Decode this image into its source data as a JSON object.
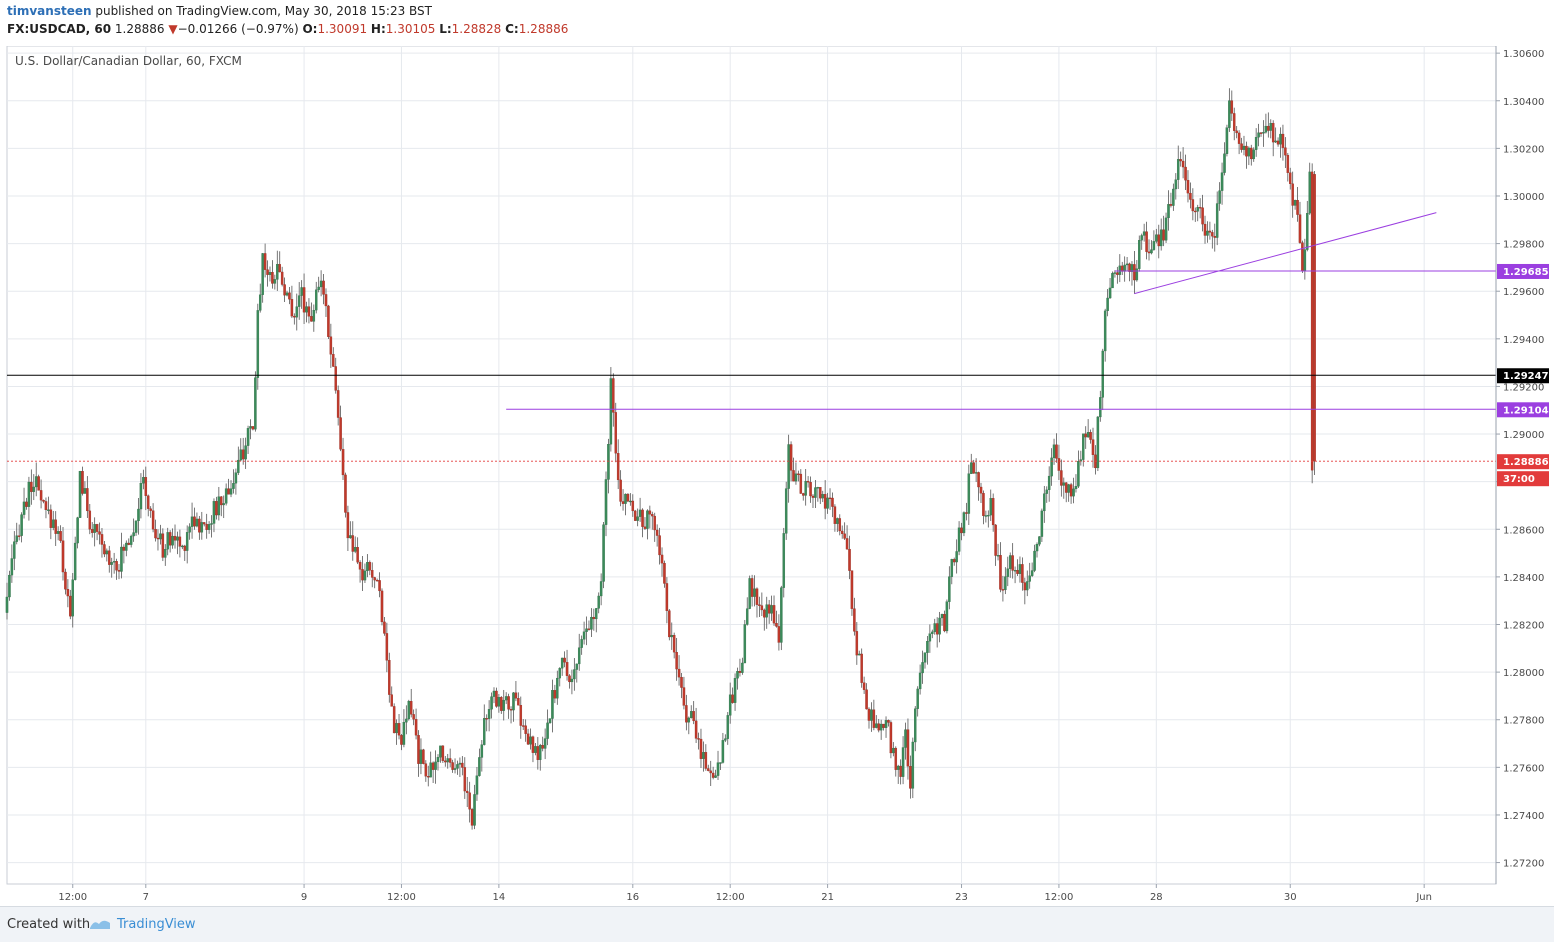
{
  "header": {
    "author": "timvansteen",
    "published": "published on TradingView.com, May 30, 2018 15:23 BST",
    "symbol": "FX:USDCAD, 60",
    "last": "1.28886",
    "change_arrow": "▼",
    "change": "−0.01266 (−0.97%)",
    "open_label": "O:",
    "open": "1.30091",
    "high_label": "H:",
    "high": "1.30105",
    "low_label": "L:",
    "low": "1.28828",
    "close_label": "C:",
    "close": "1.28886"
  },
  "chart_title": "U.S. Dollar/Canadian Dollar, 60, FXCM",
  "footer": {
    "created_with": "Created with",
    "brand": "TradingView"
  },
  "colors": {
    "up": "#3b8a5a",
    "down": "#c0392b",
    "wick": "#555555",
    "grid": "#e6e9ee",
    "line_purple": "#9b3fe0",
    "line_black": "#000000",
    "last_price": "#e23b3b",
    "axis_text": "#4a4a4a"
  },
  "chart_data": {
    "type": "candlestick",
    "title": "U.S. Dollar/Canadian Dollar, 60, FXCM",
    "ylim": [
      1.2711,
      1.3063
    ],
    "y_ticks": [
      "1.27200",
      "1.27400",
      "1.27600",
      "1.27800",
      "1.28000",
      "1.28200",
      "1.28400",
      "1.28600",
      "1.28800",
      "1.29000",
      "1.29200",
      "1.29400",
      "1.29600",
      "1.29800",
      "1.30000",
      "1.30200",
      "1.30400",
      "1.30600"
    ],
    "x_ticks": [
      {
        "label": "12:00",
        "i": 27
      },
      {
        "label": "7",
        "i": 57
      },
      {
        "label": "9",
        "i": 122
      },
      {
        "label": "12:00",
        "i": 162
      },
      {
        "label": "14",
        "i": 202
      },
      {
        "label": "16",
        "i": 257
      },
      {
        "label": "12:00",
        "i": 297
      },
      {
        "label": "21",
        "i": 337
      },
      {
        "label": "23",
        "i": 392
      },
      {
        "label": "12:00",
        "i": 432
      },
      {
        "label": "28",
        "i": 472
      },
      {
        "label": "30",
        "i": 527
      },
      {
        "label": "Jun",
        "i": 582
      }
    ],
    "price_labels": [
      {
        "value": "1.29685",
        "kind": "purple"
      },
      {
        "value": "1.29247",
        "kind": "black"
      },
      {
        "value": "1.29104",
        "kind": "purple"
      },
      {
        "value": "1.28886",
        "kind": "last"
      },
      {
        "value": "37:00",
        "kind": "timer"
      }
    ],
    "lines": [
      {
        "kind": "horizontal",
        "price": 1.29247,
        "color": "black",
        "from_i": 0
      },
      {
        "kind": "horizontal",
        "price": 1.29104,
        "color": "purple",
        "from_i": 205
      },
      {
        "kind": "horizontal",
        "price": 1.29685,
        "color": "purple",
        "from_i": 455
      },
      {
        "kind": "trend",
        "from": [
          463,
          1.2959
        ],
        "to": [
          587,
          1.2993
        ],
        "color": "purple"
      },
      {
        "kind": "last_price",
        "price": 1.28886
      }
    ],
    "anchors": [
      [
        0,
        1.2825
      ],
      [
        3,
        1.2845
      ],
      [
        7,
        1.2867
      ],
      [
        12,
        1.2881
      ],
      [
        16,
        1.2868
      ],
      [
        22,
        1.286
      ],
      [
        27,
        1.2822
      ],
      [
        31,
        1.2883
      ],
      [
        35,
        1.2863
      ],
      [
        41,
        1.285
      ],
      [
        47,
        1.2846
      ],
      [
        53,
        1.2862
      ],
      [
        57,
        1.288
      ],
      [
        61,
        1.286
      ],
      [
        65,
        1.2852
      ],
      [
        69,
        1.2857
      ],
      [
        73,
        1.2852
      ],
      [
        77,
        1.2866
      ],
      [
        81,
        1.286
      ],
      [
        85,
        1.2866
      ],
      [
        90,
        1.2873
      ],
      [
        95,
        1.2883
      ],
      [
        99,
        1.2897
      ],
      [
        102,
        1.29
      ],
      [
        104,
        1.295
      ],
      [
        106,
        1.2975
      ],
      [
        109,
        1.2965
      ],
      [
        112,
        1.297
      ],
      [
        115,
        1.2962
      ],
      [
        118,
        1.295
      ],
      [
        121,
        1.296
      ],
      [
        124,
        1.2953
      ],
      [
        126,
        1.295
      ],
      [
        129,
        1.296
      ],
      [
        131,
        1.2962
      ],
      [
        133,
        1.2945
      ],
      [
        136,
        1.292
      ],
      [
        139,
        1.288
      ],
      [
        141,
        1.2858
      ],
      [
        144,
        1.2848
      ],
      [
        147,
        1.284
      ],
      [
        150,
        1.2844
      ],
      [
        152,
        1.2838
      ],
      [
        154,
        1.2835
      ],
      [
        156,
        1.2815
      ],
      [
        158,
        1.2795
      ],
      [
        160,
        1.2778
      ],
      [
        163,
        1.277
      ],
      [
        166,
        1.2785
      ],
      [
        168,
        1.278
      ],
      [
        170,
        1.2765
      ],
      [
        173,
        1.276
      ],
      [
        176,
        1.2757
      ],
      [
        179,
        1.2768
      ],
      [
        182,
        1.2763
      ],
      [
        185,
        1.2763
      ],
      [
        188,
        1.2759
      ],
      [
        190,
        1.2748
      ],
      [
        192,
        1.2736
      ],
      [
        194,
        1.276
      ],
      [
        197,
        1.278
      ],
      [
        201,
        1.2788
      ],
      [
        206,
        1.2787
      ],
      [
        210,
        1.2787
      ],
      [
        214,
        1.2773
      ],
      [
        218,
        1.2765
      ],
      [
        222,
        1.2769
      ],
      [
        225,
        1.2789
      ],
      [
        229,
        1.2804
      ],
      [
        232,
        1.2797
      ],
      [
        236,
        1.2807
      ],
      [
        239,
        1.2817
      ],
      [
        242,
        1.2822
      ],
      [
        245,
        1.2836
      ],
      [
        247,
        1.288
      ],
      [
        249,
        1.292
      ],
      [
        251,
        1.289
      ],
      [
        253,
        1.287
      ],
      [
        256,
        1.2875
      ],
      [
        259,
        1.2867
      ],
      [
        262,
        1.2862
      ],
      [
        265,
        1.2865
      ],
      [
        268,
        1.286
      ],
      [
        270,
        1.2845
      ],
      [
        273,
        1.2818
      ],
      [
        276,
        1.28
      ],
      [
        279,
        1.2785
      ],
      [
        282,
        1.278
      ],
      [
        285,
        1.277
      ],
      [
        288,
        1.2762
      ],
      [
        291,
        1.2756
      ],
      [
        294,
        1.2765
      ],
      [
        297,
        1.2782
      ],
      [
        300,
        1.2795
      ],
      [
        303,
        1.2808
      ],
      [
        306,
        1.2835
      ],
      [
        309,
        1.283
      ],
      [
        312,
        1.2822
      ],
      [
        315,
        1.283
      ],
      [
        318,
        1.2812
      ],
      [
        320,
        1.2858
      ],
      [
        322,
        1.2893
      ],
      [
        325,
        1.288
      ],
      [
        328,
        1.2878
      ],
      [
        331,
        1.2875
      ],
      [
        334,
        1.2875
      ],
      [
        337,
        1.287
      ],
      [
        340,
        1.2868
      ],
      [
        343,
        1.286
      ],
      [
        346,
        1.285
      ],
      [
        348,
        1.283
      ],
      [
        350,
        1.281
      ],
      [
        353,
        1.279
      ],
      [
        356,
        1.278
      ],
      [
        359,
        1.2772
      ],
      [
        362,
        1.278
      ],
      [
        365,
        1.2765
      ],
      [
        368,
        1.2758
      ],
      [
        370,
        1.2772
      ],
      [
        372,
        1.2753
      ],
      [
        374,
        1.2782
      ],
      [
        377,
        1.2808
      ],
      [
        380,
        1.2818
      ],
      [
        383,
        1.282
      ],
      [
        386,
        1.282
      ],
      [
        389,
        1.2845
      ],
      [
        392,
        1.2858
      ],
      [
        395,
        1.287
      ],
      [
        397,
        1.289
      ],
      [
        399,
        1.2885
      ],
      [
        402,
        1.287
      ],
      [
        405,
        1.287
      ],
      [
        408,
        1.2845
      ],
      [
        410,
        1.2832
      ],
      [
        413,
        1.2848
      ],
      [
        416,
        1.2845
      ],
      [
        419,
        1.2838
      ],
      [
        422,
        1.2846
      ],
      [
        425,
        1.286
      ],
      [
        428,
        1.2878
      ],
      [
        431,
        1.2893
      ],
      [
        434,
        1.288
      ],
      [
        437,
        1.2875
      ],
      [
        440,
        1.2882
      ],
      [
        443,
        1.2897
      ],
      [
        446,
        1.2902
      ],
      [
        448,
        1.2889
      ],
      [
        450,
        1.2918
      ],
      [
        452,
        1.295
      ],
      [
        455,
        1.2967
      ],
      [
        458,
        1.2972
      ],
      [
        461,
        1.2968
      ],
      [
        464,
        1.2968
      ],
      [
        467,
        1.2983
      ],
      [
        470,
        1.2978
      ],
      [
        473,
        1.2981
      ],
      [
        476,
        1.2985
      ],
      [
        479,
        1.2997
      ],
      [
        482,
        1.3017
      ],
      [
        485,
        1.3003
      ],
      [
        488,
        1.2997
      ],
      [
        491,
        1.2993
      ],
      [
        494,
        1.2983
      ],
      [
        497,
        1.2987
      ],
      [
        500,
        1.3008
      ],
      [
        503,
        1.3037
      ],
      [
        506,
        1.3025
      ],
      [
        509,
        1.302
      ],
      [
        512,
        1.3018
      ],
      [
        515,
        1.3025
      ],
      [
        518,
        1.303
      ],
      [
        521,
        1.3027
      ],
      [
        524,
        1.3025
      ],
      [
        527,
        1.3013
      ],
      [
        529,
        1.3
      ],
      [
        531,
        1.299
      ],
      [
        533,
        1.297
      ],
      [
        535,
        1.299
      ],
      [
        536,
        1.3009
      ],
      [
        537,
        1.2888
      ]
    ],
    "candle_count": 538
  }
}
